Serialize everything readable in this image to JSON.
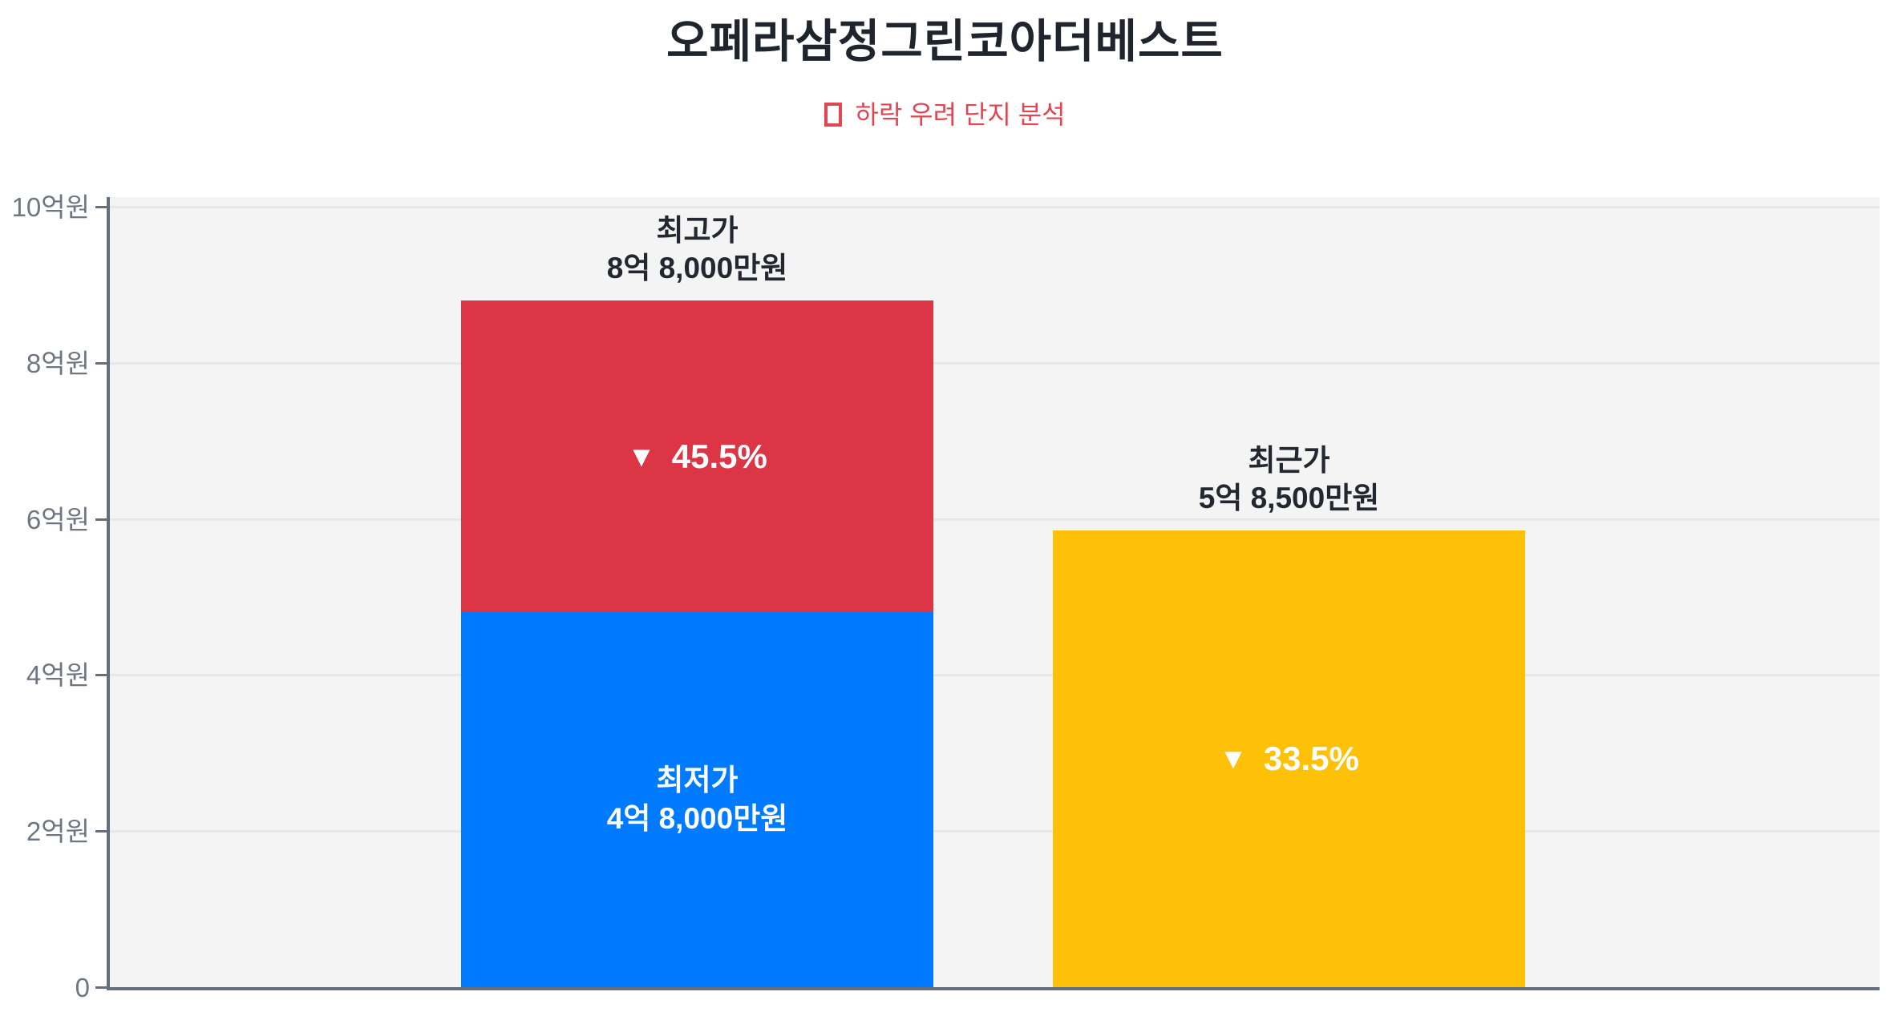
{
  "header": {
    "title": "오페라삼정그린코아더베스트",
    "subtitle": "하락 우려 단지 분석"
  },
  "icons": {
    "down_triangle": "▼",
    "subtitle_box": "□"
  },
  "colors": {
    "lowest_blue": "#007bff",
    "highest_red": "#dc3545",
    "recent_yellow": "#ffc107",
    "subtitle_red": "#e24653",
    "plot_background": "#f4f4f4",
    "axis": "#646e7c",
    "gridline": "#e8e8e9",
    "tick_label": "#6e7682",
    "title_text": "#20242d"
  },
  "chart_data": {
    "type": "bar",
    "title": "오페라삼정그린코아더베스트",
    "subtitle": "하락 우려 단지 분석",
    "grid": true,
    "legend_position": "none",
    "y_axis": {
      "unit": "억원",
      "lim": [
        0,
        10
      ],
      "ticks": [
        {
          "label": "0",
          "value": 0
        },
        {
          "label": "2억원",
          "value": 2
        },
        {
          "label": "4억원",
          "value": 4
        },
        {
          "label": "6억원",
          "value": 6
        },
        {
          "label": "8억원",
          "value": 8
        },
        {
          "label": "10억원",
          "value": 10
        }
      ]
    },
    "bars": {
      "price_range": {
        "low": {
          "label": "최저가",
          "value_label": "4억 8,000만원",
          "value_eok": 4.8,
          "color": "#007bff"
        },
        "high": {
          "label": "최고가",
          "value_label": "8억 8,000만원",
          "value_eok": 8.8,
          "color": "#dc3545",
          "drop_percent": "45.5%"
        }
      },
      "recent": {
        "label": "최근가",
        "value_label": "5억 8,500만원",
        "value_eok": 5.85,
        "color": "#ffc107",
        "drop_percent": "33.5%"
      }
    }
  }
}
